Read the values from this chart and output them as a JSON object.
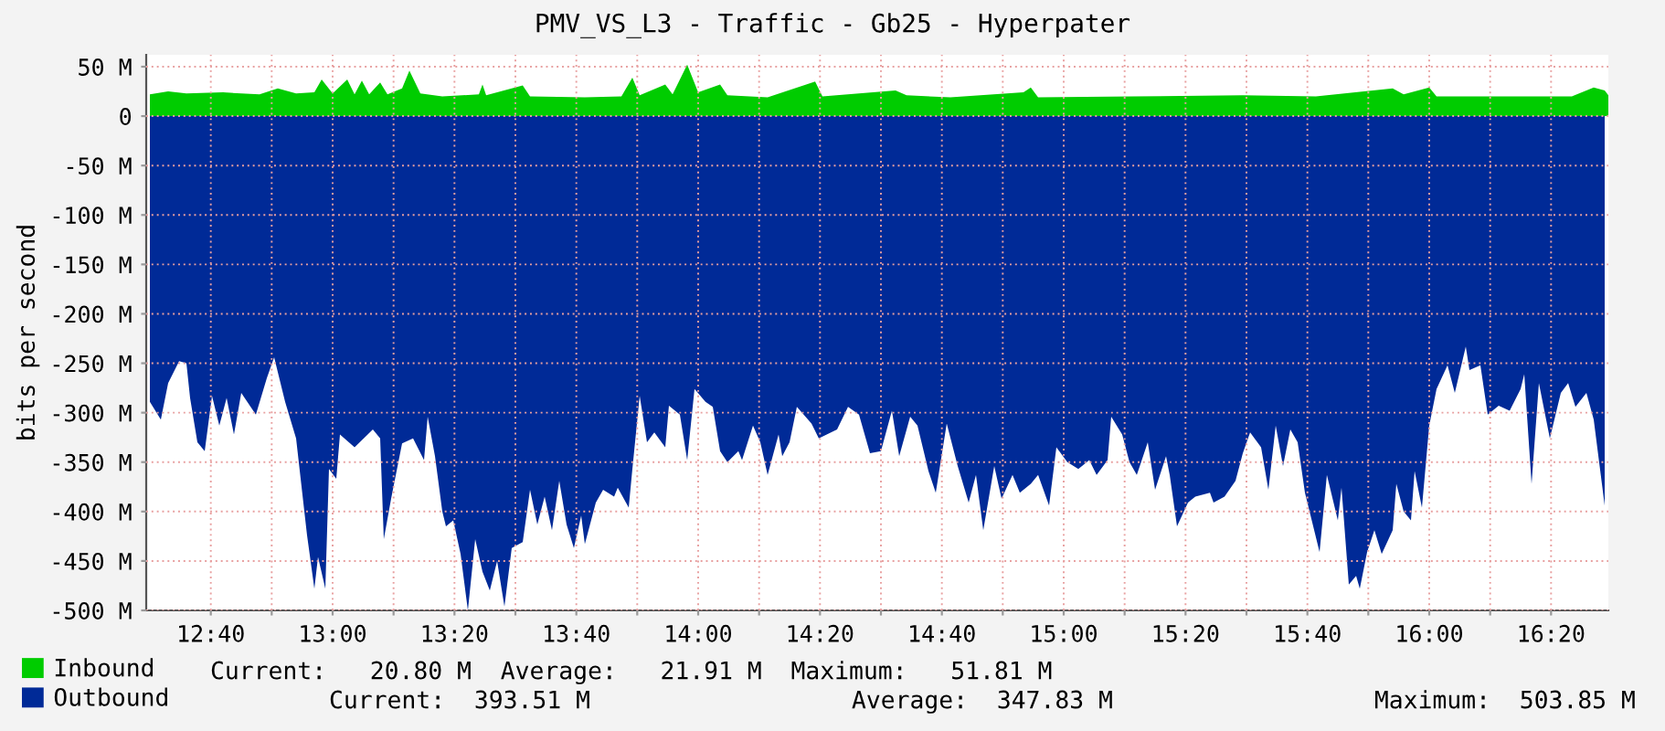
{
  "chart_data": {
    "type": "area",
    "title": "PMV_VS_L3 - Traffic - Gb25 - Hyperpater",
    "ylabel": "bits per second",
    "xlim": [
      12.49,
      16.49
    ],
    "ylim": [
      -500,
      62
    ],
    "xticks": [
      {
        "value": 12.6667,
        "label": "12:40"
      },
      {
        "value": 12.8333,
        "label": null
      },
      {
        "value": 13.0,
        "label": "13:00"
      },
      {
        "value": 13.1667,
        "label": null
      },
      {
        "value": 13.3333,
        "label": "13:20"
      },
      {
        "value": 13.5,
        "label": null
      },
      {
        "value": 13.6667,
        "label": "13:40"
      },
      {
        "value": 13.8333,
        "label": null
      },
      {
        "value": 14.0,
        "label": "14:00"
      },
      {
        "value": 14.1667,
        "label": null
      },
      {
        "value": 14.3333,
        "label": "14:20"
      },
      {
        "value": 14.5,
        "label": null
      },
      {
        "value": 14.6667,
        "label": "14:40"
      },
      {
        "value": 14.8333,
        "label": null
      },
      {
        "value": 15.0,
        "label": "15:00"
      },
      {
        "value": 15.1667,
        "label": null
      },
      {
        "value": 15.3333,
        "label": "15:20"
      },
      {
        "value": 15.5,
        "label": null
      },
      {
        "value": 15.6667,
        "label": "15:40"
      },
      {
        "value": 15.8333,
        "label": null
      },
      {
        "value": 16.0,
        "label": "16:00"
      },
      {
        "value": 16.1667,
        "label": null
      },
      {
        "value": 16.3333,
        "label": "16:20"
      }
    ],
    "yticks": [
      {
        "value": 50,
        "label": "50 M"
      },
      {
        "value": 0,
        "label": "0"
      },
      {
        "value": -50,
        "label": "-50 M"
      },
      {
        "value": -100,
        "label": "-100 M"
      },
      {
        "value": -150,
        "label": "-150 M"
      },
      {
        "value": -200,
        "label": "-200 M"
      },
      {
        "value": -250,
        "label": "-250 M"
      },
      {
        "value": -300,
        "label": "-300 M"
      },
      {
        "value": -350,
        "label": "-350 M"
      },
      {
        "value": -400,
        "label": "-400 M"
      },
      {
        "value": -450,
        "label": "-450 M"
      },
      {
        "value": -500,
        "label": "-500 M"
      }
    ],
    "grid": true,
    "legend": "bottom left",
    "series": [
      {
        "name": "Inbound",
        "color": "#00cc00",
        "x": [
          12.5,
          12.55,
          12.6,
          12.7,
          12.8,
          12.85,
          12.9,
          12.95,
          12.97,
          13.0,
          13.04,
          13.06,
          13.08,
          13.1,
          13.13,
          13.15,
          13.19,
          13.21,
          13.24,
          13.3,
          13.4,
          13.41,
          13.42,
          13.52,
          13.54,
          13.69,
          13.79,
          13.82,
          13.84,
          13.91,
          13.93,
          13.97,
          14.0,
          14.06,
          14.08,
          14.19,
          14.32,
          14.34,
          14.54,
          14.57,
          14.69,
          14.89,
          14.91,
          14.93,
          15.19,
          15.49,
          15.69,
          15.9,
          15.93,
          16.0,
          16.02,
          16.19,
          16.39,
          16.45,
          16.48,
          16.49
        ],
        "values": [
          22,
          25,
          23,
          24,
          22,
          28,
          23,
          24,
          37,
          23,
          37,
          22,
          36,
          22,
          34,
          22,
          28,
          46,
          23,
          20,
          22,
          32,
          21,
          31,
          20,
          19,
          20,
          39,
          21,
          32,
          22,
          52,
          24,
          32,
          21,
          19,
          35,
          20,
          26,
          21,
          19,
          24,
          29,
          19,
          20,
          21,
          20,
          28,
          22,
          29,
          20,
          20,
          20,
          29,
          26,
          21
        ]
      },
      {
        "name": "Outbound",
        "color": "#002a97",
        "x": [
          12.5,
          12.53,
          12.55,
          12.58,
          12.6,
          12.61,
          12.63,
          12.65,
          12.67,
          12.69,
          12.71,
          12.73,
          12.75,
          12.79,
          12.82,
          12.84,
          12.87,
          12.9,
          12.93,
          12.95,
          12.96,
          12.98,
          12.99,
          13.01,
          13.02,
          13.06,
          13.11,
          13.13,
          13.14,
          13.16,
          13.19,
          13.22,
          13.25,
          13.26,
          13.28,
          13.3,
          13.31,
          13.33,
          13.35,
          13.37,
          13.39,
          13.41,
          13.43,
          13.45,
          13.47,
          13.49,
          13.52,
          13.54,
          13.56,
          13.58,
          13.6,
          13.62,
          13.64,
          13.66,
          13.68,
          13.69,
          13.72,
          13.74,
          13.77,
          13.78,
          13.81,
          13.82,
          13.84,
          13.86,
          13.88,
          13.91,
          13.92,
          13.95,
          13.97,
          13.99,
          14.02,
          14.04,
          14.06,
          14.08,
          14.11,
          14.12,
          14.15,
          14.17,
          14.19,
          14.22,
          14.23,
          14.25,
          14.27,
          14.31,
          14.33,
          14.38,
          14.41,
          14.44,
          14.47,
          14.5,
          14.53,
          14.55,
          14.58,
          14.6,
          14.63,
          14.65,
          14.68,
          14.71,
          14.74,
          14.76,
          14.78,
          14.81,
          14.83,
          14.86,
          14.88,
          14.91,
          14.93,
          14.96,
          14.98,
          15.01,
          15.04,
          15.07,
          15.09,
          15.12,
          15.13,
          15.16,
          15.18,
          15.2,
          15.23,
          15.25,
          15.28,
          15.29,
          15.31,
          15.34,
          15.36,
          15.4,
          15.41,
          15.44,
          15.47,
          15.49,
          15.51,
          15.54,
          15.56,
          15.58,
          15.6,
          15.62,
          15.64,
          15.66,
          15.7,
          15.72,
          15.75,
          15.76,
          15.78,
          15.8,
          15.81,
          15.83,
          15.85,
          15.87,
          15.9,
          15.91,
          15.93,
          15.95,
          15.96,
          15.98,
          16.0,
          16.02,
          16.05,
          16.07,
          16.1,
          16.11,
          16.14,
          16.16,
          16.19,
          16.22,
          16.25,
          16.26,
          16.28,
          16.3,
          16.33,
          16.36,
          16.38,
          16.4,
          16.43,
          16.45,
          16.48
        ],
        "values": [
          -289,
          -307,
          -270,
          -248,
          -250,
          -285,
          -330,
          -339,
          -283,
          -313,
          -285,
          -322,
          -280,
          -302,
          -265,
          -244,
          -289,
          -326,
          -424,
          -478,
          -446,
          -478,
          -357,
          -367,
          -322,
          -335,
          -317,
          -326,
          -428,
          -387,
          -331,
          -326,
          -348,
          -304,
          -344,
          -400,
          -415,
          -409,
          -443,
          -500,
          -428,
          -461,
          -480,
          -450,
          -496,
          -437,
          -431,
          -378,
          -413,
          -385,
          -419,
          -369,
          -413,
          -437,
          -404,
          -433,
          -391,
          -378,
          -385,
          -376,
          -396,
          -357,
          -283,
          -330,
          -320,
          -335,
          -293,
          -302,
          -348,
          -276,
          -289,
          -294,
          -339,
          -350,
          -339,
          -348,
          -313,
          -330,
          -363,
          -322,
          -344,
          -330,
          -294,
          -311,
          -326,
          -317,
          -294,
          -302,
          -341,
          -339,
          -298,
          -344,
          -304,
          -313,
          -359,
          -381,
          -311,
          -354,
          -391,
          -363,
          -419,
          -354,
          -387,
          -363,
          -381,
          -372,
          -363,
          -394,
          -335,
          -350,
          -357,
          -348,
          -363,
          -348,
          -304,
          -322,
          -350,
          -363,
          -330,
          -378,
          -344,
          -363,
          -415,
          -391,
          -385,
          -381,
          -391,
          -385,
          -369,
          -341,
          -320,
          -335,
          -378,
          -313,
          -354,
          -317,
          -330,
          -381,
          -441,
          -363,
          -409,
          -376,
          -474,
          -465,
          -478,
          -441,
          -419,
          -443,
          -419,
          -372,
          -400,
          -409,
          -359,
          -396,
          -313,
          -276,
          -252,
          -280,
          -233,
          -257,
          -252,
          -302,
          -293,
          -298,
          -276,
          -261,
          -372,
          -270,
          -326,
          -280,
          -270,
          -294,
          -280,
          -307,
          -394
        ]
      }
    ],
    "annotations": [
      "Current:   20.80 M  Average:   21.91 M  Maximum:   51.81 M",
      "Current:  393.51 M                  Average:  347.83 M                  Maximum:  503.85 M"
    ]
  }
}
